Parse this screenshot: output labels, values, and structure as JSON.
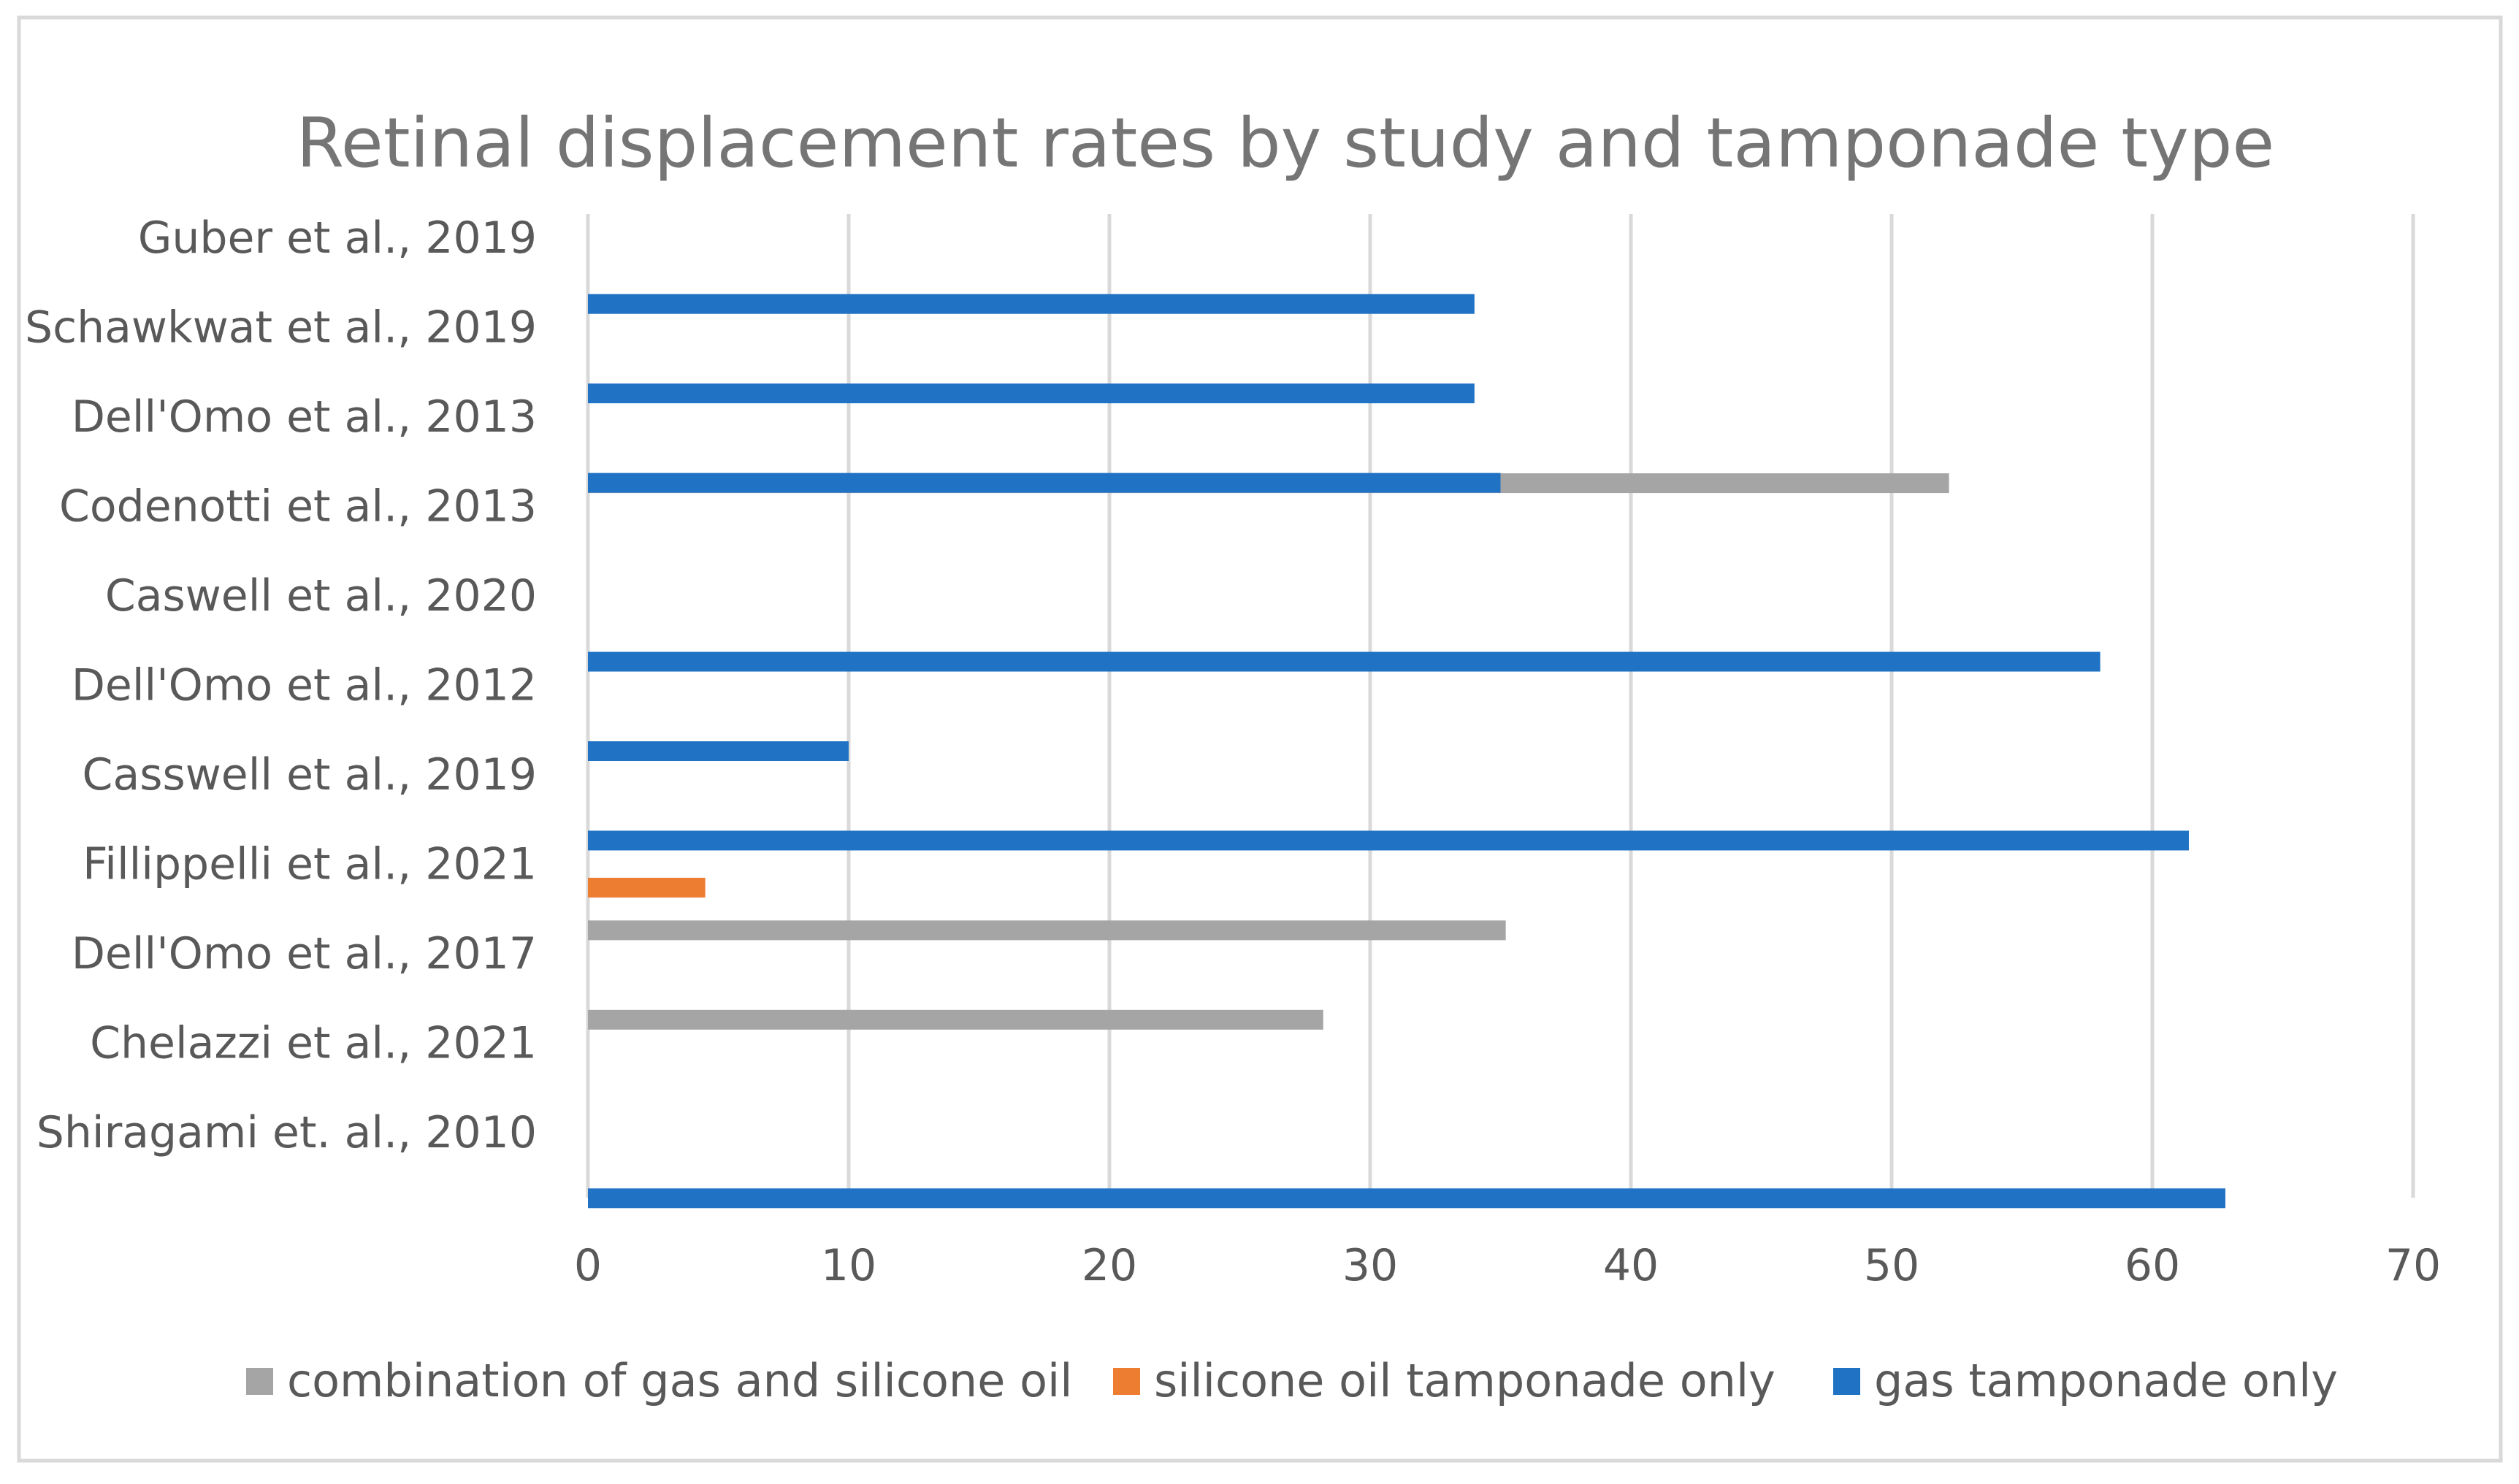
{
  "chart_data": {
    "type": "bar",
    "orientation": "horizontal",
    "title": "Retinal displacement rates by study and tamponade type",
    "categories": [
      "Shiragami et. al., 2010",
      "Chelazzi et al., 2021",
      "Dell'Omo et al., 2017",
      "Fillippelli et al., 2021",
      "Casswell et al., 2019",
      "Dell'Omo et al., 2012",
      "Caswell et al., 2020",
      "Codenotti et al., 2013",
      "Dell'Omo et al., 2013",
      "Schawkwat et al., 2019",
      "Guber et al., 2019"
    ],
    "series": [
      {
        "name": "combination of gas and silicone oil",
        "color": "#a5a5a5",
        "values": [
          null,
          28.2,
          35.2,
          null,
          null,
          null,
          null,
          52.2,
          null,
          null,
          null
        ]
      },
      {
        "name": "silicone oil tamponade only",
        "color": "#ed7d31",
        "values": [
          null,
          null,
          null,
          4.5,
          null,
          null,
          null,
          null,
          null,
          null,
          null
        ]
      },
      {
        "name": "gas tamponade only",
        "color": "#1f72c4",
        "values": [
          62.8,
          null,
          null,
          null,
          61.4,
          10.0,
          58.0,
          null,
          35.0,
          34.0,
          34.0
        ]
      }
    ],
    "xlim": [
      0,
      70
    ],
    "xticks": [
      "0",
      "10",
      "20",
      "30",
      "40",
      "50",
      "60",
      "70"
    ],
    "xlabel": "",
    "ylabel": "",
    "grid": true,
    "legend_position": "bottom"
  },
  "style": {
    "grid_color": "#d9d9d9",
    "border_color": "#d9d9d9"
  }
}
